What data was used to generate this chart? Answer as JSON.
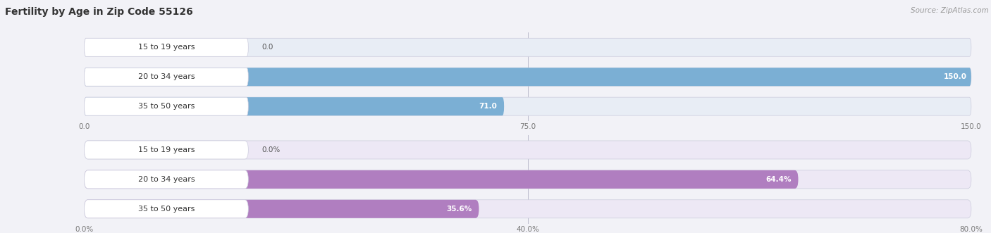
{
  "title": "Fertility by Age in Zip Code 55126",
  "source": "Source: ZipAtlas.com",
  "top_chart": {
    "categories": [
      "15 to 19 years",
      "20 to 34 years",
      "35 to 50 years"
    ],
    "values": [
      0.0,
      150.0,
      71.0
    ],
    "bar_color": "#7BAFD4",
    "bar_bg_color": "#E8EDF5",
    "label_bg_color": "#FFFFFF",
    "xlim": [
      0,
      150
    ],
    "xticks": [
      0.0,
      75.0,
      150.0
    ],
    "xtick_labels": [
      "0.0",
      "75.0",
      "150.0"
    ],
    "value_labels": [
      "0.0",
      "150.0",
      "71.0"
    ]
  },
  "bottom_chart": {
    "categories": [
      "15 to 19 years",
      "20 to 34 years",
      "35 to 50 years"
    ],
    "values": [
      0.0,
      64.4,
      35.6
    ],
    "bar_color": "#B07EC0",
    "bar_bg_color": "#EDE8F5",
    "label_bg_color": "#FFFFFF",
    "xlim": [
      0,
      80
    ],
    "xticks": [
      0.0,
      40.0,
      80.0
    ],
    "xtick_labels": [
      "0.0%",
      "40.0%",
      "80.0%"
    ],
    "value_labels": [
      "0.0%",
      "64.4%",
      "35.6%"
    ]
  },
  "fig_bg_color": "#F2F2F7",
  "title_fontsize": 10,
  "label_fontsize": 8,
  "value_fontsize": 7.5,
  "source_fontsize": 7.5
}
